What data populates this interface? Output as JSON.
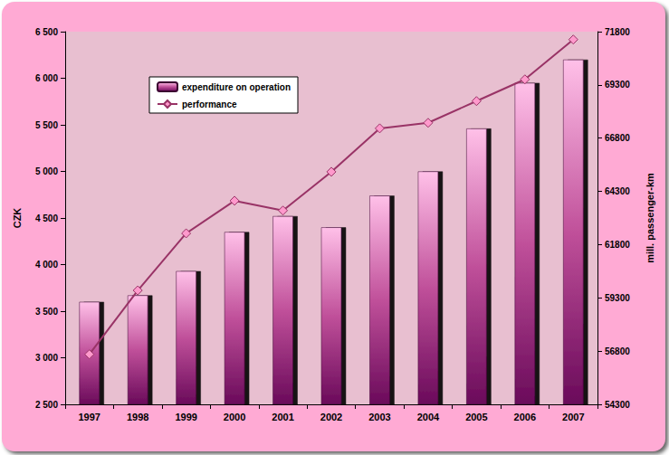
{
  "chart_data": {
    "type": "bar",
    "categories": [
      "1997",
      "1998",
      "1999",
      "2000",
      "2001",
      "2002",
      "2003",
      "2004",
      "2005",
      "2006",
      "2007"
    ],
    "series": [
      {
        "name": "expenditure on operation",
        "type": "bar",
        "color": "#c0509a",
        "values": [
          3600,
          3670,
          3930,
          4350,
          4520,
          4400,
          4740,
          5000,
          5460,
          5950,
          6200
        ]
      },
      {
        "name": "performance",
        "type": "line",
        "axis": "y2",
        "color": "#993366",
        "marker": "diamond",
        "values": [
          56650,
          59650,
          62330,
          63860,
          63400,
          65220,
          67260,
          67520,
          68540,
          69560,
          71430
        ]
      }
    ],
    "y_label": "CZK",
    "y2_label": "mill. passenger-km",
    "ylim": [
      2500,
      6500
    ],
    "yticks": [
      {
        "value": 2500,
        "label": "2 500"
      },
      {
        "value": 3000,
        "label": "3 000"
      },
      {
        "value": 3500,
        "label": "3 500"
      },
      {
        "value": 4000,
        "label": "4 000"
      },
      {
        "value": 4500,
        "label": "4 500"
      },
      {
        "value": 5000,
        "label": "5 000"
      },
      {
        "value": 5500,
        "label": "5 500"
      },
      {
        "value": 6000,
        "label": "6 000"
      },
      {
        "value": 6500,
        "label": "6 500"
      }
    ],
    "y2lim": [
      54300,
      71800
    ],
    "y2ticks": [
      54300,
      56800,
      59300,
      61800,
      64300,
      66800,
      69300,
      71800
    ],
    "grid": false,
    "legend": "upper left"
  }
}
